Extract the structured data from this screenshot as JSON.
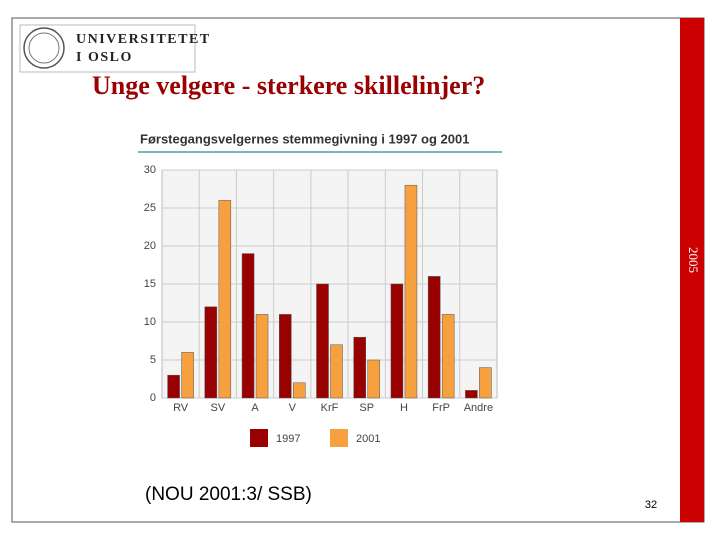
{
  "header": {
    "logo_line1": "UNIVERSITETET",
    "logo_line2": "I OSLO"
  },
  "title": "Unge velgere - sterkere skillelinjer?",
  "side_label": "2005",
  "source": "(NOU 2001:3/ SSB)",
  "page_number": "32",
  "chart_data": {
    "type": "bar",
    "title": "Førstegangsvelgernes stemmegivning i 1997 og 2001",
    "categories": [
      "RV",
      "SV",
      "A",
      "V",
      "KrF",
      "SP",
      "H",
      "FrP",
      "Andre"
    ],
    "series": [
      {
        "name": "1997",
        "color": "#990000",
        "values": [
          3,
          12,
          19,
          11,
          15,
          8,
          15,
          16,
          1
        ]
      },
      {
        "name": "2001",
        "color": "#f7a040",
        "values": [
          6,
          26,
          11,
          2,
          7,
          5,
          28,
          11,
          4
        ]
      }
    ],
    "ylim": [
      0,
      30
    ],
    "yticks": [
      0,
      5,
      10,
      15,
      20,
      25,
      30
    ],
    "grid": true
  }
}
